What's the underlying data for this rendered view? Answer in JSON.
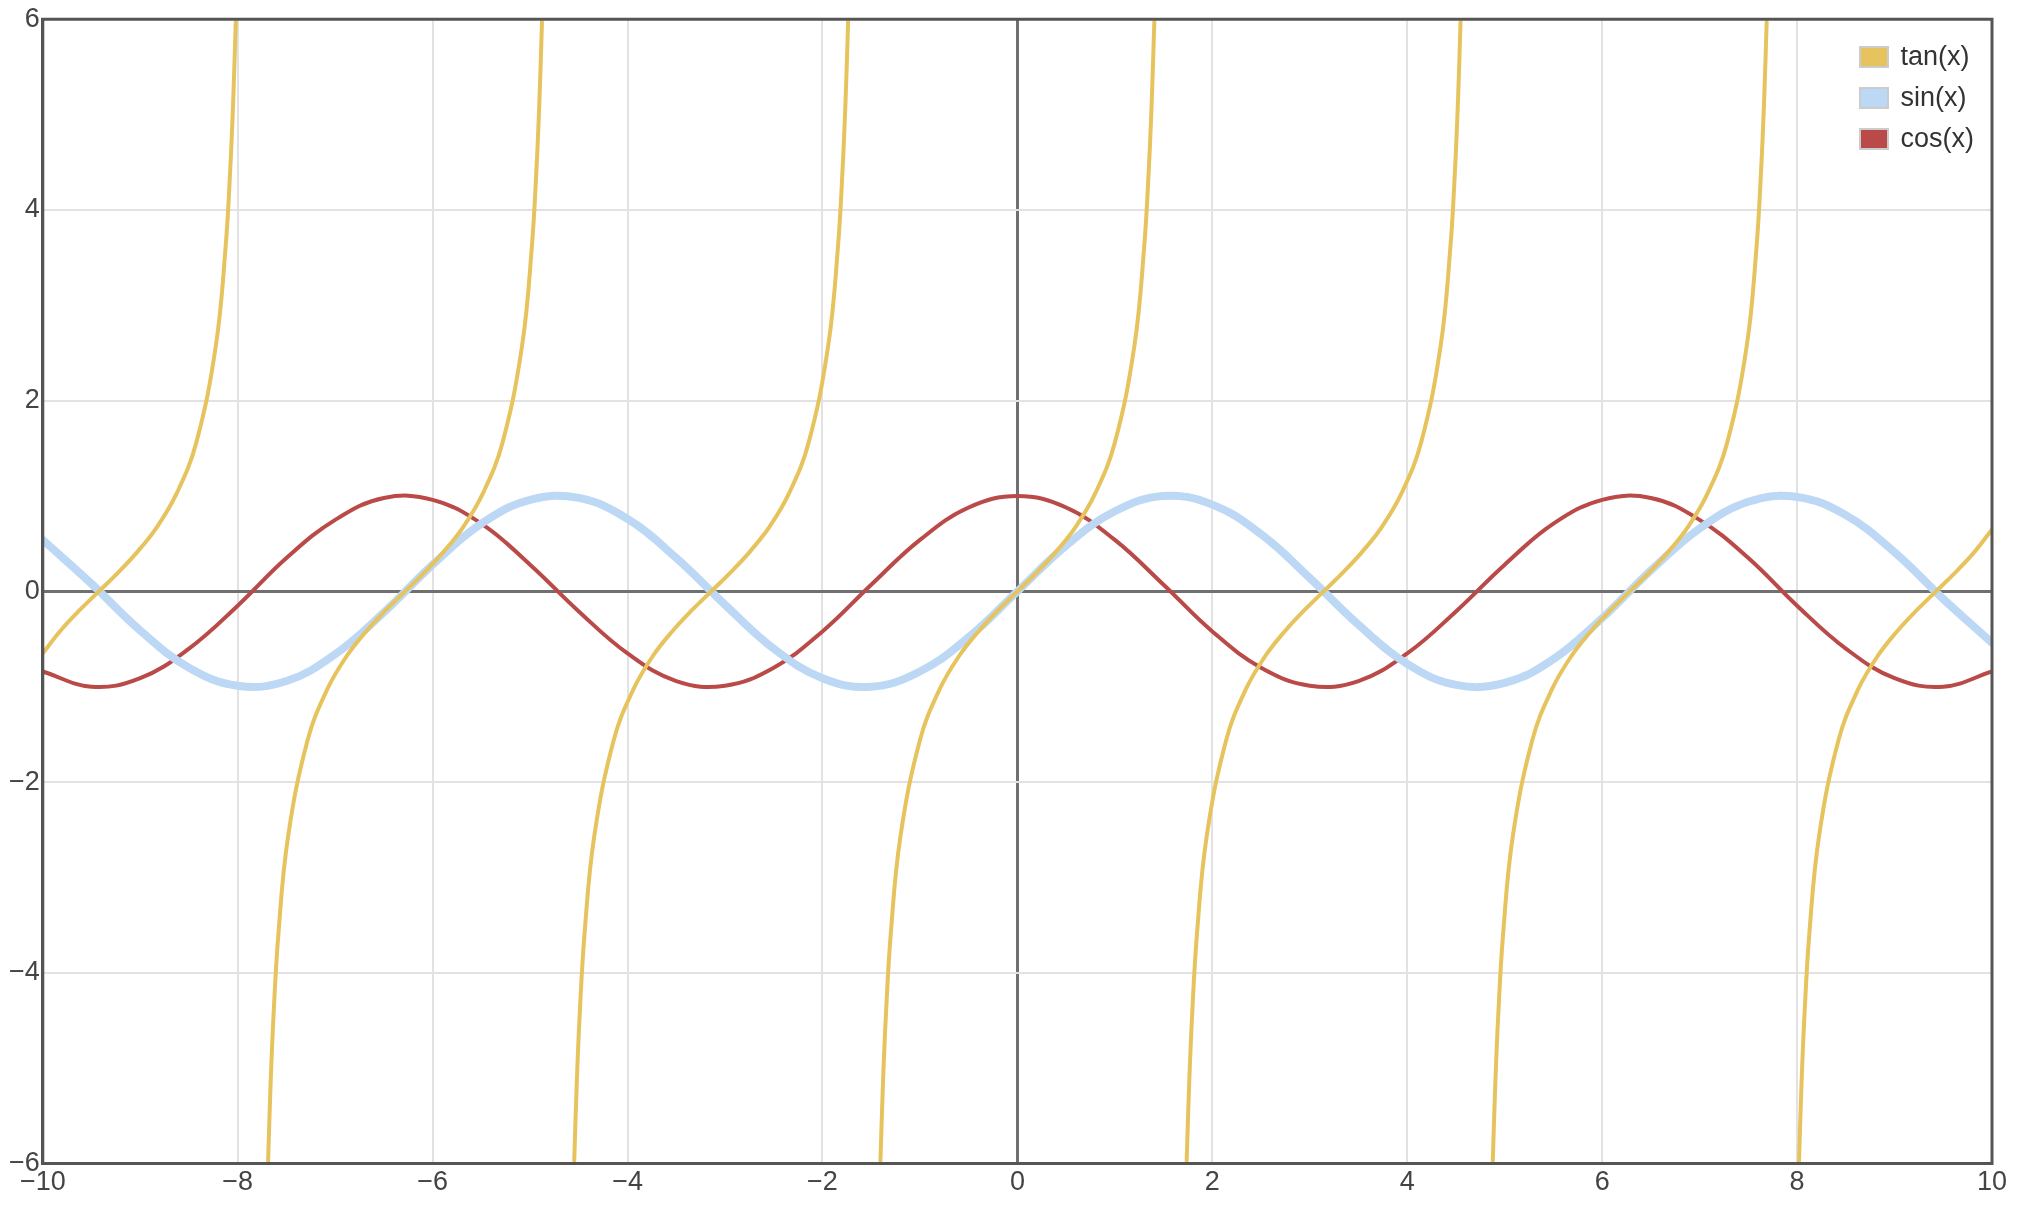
{
  "chart_data": {
    "type": "line",
    "xlim": [
      -10,
      10
    ],
    "ylim": [
      -6,
      6
    ],
    "xticks": [
      {
        "value": -10,
        "label": "−10"
      },
      {
        "value": -8,
        "label": "−8"
      },
      {
        "value": -6,
        "label": "−6"
      },
      {
        "value": -4,
        "label": "−4"
      },
      {
        "value": -2,
        "label": "−2"
      },
      0,
      2,
      4,
      6,
      8,
      10
    ],
    "yticks": [
      {
        "value": -6,
        "label": "−6"
      },
      {
        "value": -4,
        "label": "−4"
      },
      {
        "value": -2,
        "label": "−2"
      },
      0,
      2,
      4,
      6
    ],
    "grid": true,
    "legend": "top right",
    "marker": "none",
    "line_style": "solid",
    "series": [
      {
        "name": "tan(x)",
        "color": "#e6c35c",
        "x": [
          -10,
          -9.825,
          -9.625,
          -9.425,
          -9.225,
          -9.025,
          -8.825,
          -8.625,
          -8.425,
          -8.225,
          -8.125,
          -8.075,
          -8.045,
          -8.02,
          -7.854,
          -7.688,
          -7.663,
          -7.633,
          -7.583,
          -7.483,
          -7.283,
          -7.083,
          -6.883,
          -6.683,
          -6.483,
          -6.283,
          -6.083,
          -5.883,
          -5.683,
          -5.483,
          -5.283,
          -5.083,
          -4.983,
          -4.933,
          -4.903,
          -4.878,
          -4.712,
          -4.547,
          -4.522,
          -4.492,
          -4.442,
          -4.342,
          -4.142,
          -3.942,
          -3.742,
          -3.542,
          -3.342,
          -3.142,
          -2.942,
          -2.742,
          -2.542,
          -2.342,
          -2.142,
          -1.942,
          -1.842,
          -1.792,
          -1.762,
          -1.737,
          -1.571,
          -1.405,
          -1.38,
          -1.35,
          -1.3,
          -1.2,
          -1,
          -0.8,
          -0.6,
          -0.4,
          -0.2,
          0,
          0.2,
          0.4,
          0.6,
          0.8,
          1,
          1.2,
          1.3,
          1.35,
          1.38,
          1.405,
          1.571,
          1.737,
          1.762,
          1.792,
          1.842,
          1.942,
          2.142,
          2.342,
          2.542,
          2.742,
          2.942,
          3.142,
          3.342,
          3.542,
          3.742,
          3.942,
          4.142,
          4.342,
          4.442,
          4.492,
          4.522,
          4.547,
          4.712,
          4.878,
          4.903,
          4.933,
          4.983,
          5.083,
          5.283,
          5.483,
          5.683,
          5.883,
          6.083,
          6.283,
          6.483,
          6.683,
          6.883,
          7.083,
          7.283,
          7.483,
          7.583,
          7.633,
          7.663,
          7.688,
          7.854,
          8.02,
          8.045,
          8.075,
          8.125,
          8.225,
          8.425,
          8.625,
          8.825,
          9.025,
          9.225,
          9.425,
          9.625,
          9.825,
          10
        ],
        "values": [
          -0.65,
          -0.42,
          -0.2,
          0,
          0.2,
          0.42,
          0.68,
          1.03,
          1.56,
          2.57,
          3.6,
          4.46,
          5.18,
          5.97,
          null,
          -5.97,
          -5.18,
          -4.46,
          -3.6,
          -2.57,
          -1.56,
          -1.03,
          -0.68,
          -0.42,
          -0.2,
          0,
          0.2,
          0.42,
          0.68,
          1.03,
          1.56,
          2.57,
          3.6,
          4.46,
          5.18,
          5.97,
          null,
          -5.97,
          -5.18,
          -4.46,
          -3.6,
          -2.57,
          -1.56,
          -1.03,
          -0.68,
          -0.42,
          -0.2,
          0,
          0.2,
          0.42,
          0.68,
          1.03,
          1.56,
          2.57,
          3.6,
          4.46,
          5.18,
          5.97,
          null,
          -5.97,
          -5.18,
          -4.46,
          -3.6,
          -2.57,
          -1.56,
          -1.03,
          -0.68,
          -0.42,
          -0.2,
          0,
          0.2,
          0.42,
          0.68,
          1.03,
          1.56,
          2.57,
          3.6,
          4.46,
          5.18,
          5.97,
          null,
          -5.97,
          -5.18,
          -4.46,
          -3.6,
          -2.57,
          -1.56,
          -1.03,
          -0.68,
          -0.42,
          -0.2,
          0,
          0.2,
          0.42,
          0.68,
          1.03,
          1.56,
          2.57,
          3.6,
          4.46,
          5.18,
          5.97,
          null,
          -5.97,
          -5.18,
          -4.46,
          -3.6,
          -2.57,
          -1.56,
          -1.03,
          -0.68,
          -0.42,
          -0.2,
          0,
          0.2,
          0.42,
          0.68,
          1.03,
          1.56,
          2.57,
          3.6,
          4.46,
          5.18,
          5.97,
          null,
          -5.97,
          -5.18,
          -4.46,
          -3.6,
          -2.57,
          -1.56,
          -1.03,
          -0.68,
          -0.42,
          -0.2,
          0,
          0.2,
          0.42,
          0.65
        ]
      },
      {
        "name": "sin(x)",
        "color": "#bcd8f5",
        "x": [
          -10,
          -9.5,
          -9,
          -8.5,
          -8,
          -7.5,
          -7,
          -6.5,
          -6,
          -5.5,
          -5,
          -4.5,
          -4,
          -3.5,
          -3,
          -2.5,
          -2,
          -1.5,
          -1,
          -0.5,
          0,
          0.5,
          1,
          1.5,
          2,
          2.5,
          3,
          3.5,
          4,
          4.5,
          5,
          5.5,
          6,
          6.5,
          7,
          7.5,
          8,
          8.5,
          9,
          9.5,
          10
        ],
        "values": [
          0.54,
          0.08,
          -0.41,
          -0.8,
          -0.99,
          -0.94,
          -0.66,
          -0.22,
          0.28,
          0.71,
          0.96,
          0.98,
          0.76,
          0.35,
          -0.14,
          -0.6,
          -0.91,
          -1,
          -0.84,
          -0.48,
          0,
          0.48,
          0.84,
          1,
          0.91,
          0.6,
          0.14,
          -0.35,
          -0.76,
          -0.98,
          -0.96,
          -0.71,
          -0.28,
          0.22,
          0.66,
          0.94,
          0.99,
          0.8,
          0.41,
          -0.08,
          -0.54
        ]
      },
      {
        "name": "cos(x)",
        "color": "#b94a48",
        "x": [
          -10,
          -9.5,
          -9,
          -8.5,
          -8,
          -7.5,
          -7,
          -6.5,
          -6,
          -5.5,
          -5,
          -4.5,
          -4,
          -3.5,
          -3,
          -2.5,
          -2,
          -1.5,
          -1,
          -0.5,
          0,
          0.5,
          1,
          1.5,
          2,
          2.5,
          3,
          3.5,
          4,
          4.5,
          5,
          5.5,
          6,
          6.5,
          7,
          7.5,
          8,
          8.5,
          9,
          9.5,
          10
        ],
        "values": [
          -0.84,
          -1,
          -0.91,
          -0.6,
          -0.15,
          0.35,
          0.75,
          0.98,
          0.96,
          0.71,
          0.28,
          -0.21,
          -0.65,
          -0.94,
          -0.99,
          -0.8,
          -0.42,
          0.07,
          0.54,
          0.88,
          1,
          0.88,
          0.54,
          0.07,
          -0.42,
          -0.8,
          -0.99,
          -0.94,
          -0.65,
          -0.21,
          0.28,
          0.71,
          0.96,
          0.98,
          0.75,
          0.35,
          -0.15,
          -0.6,
          -0.91,
          -1,
          -0.84
        ]
      }
    ]
  }
}
